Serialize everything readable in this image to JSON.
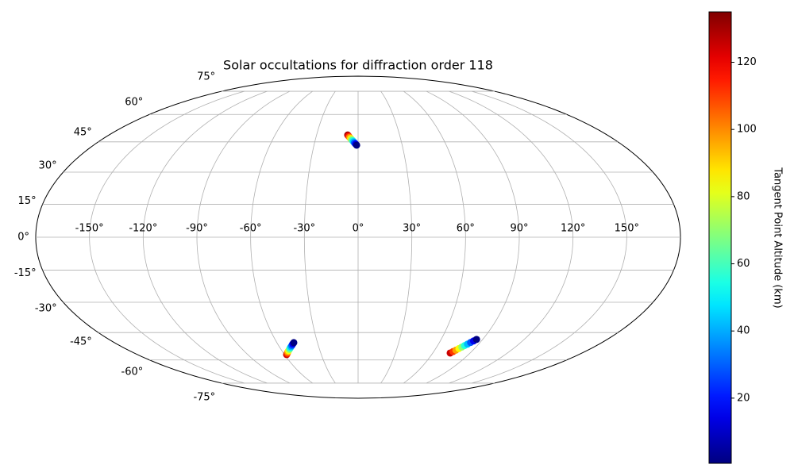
{
  "chart_data": {
    "type": "scatter",
    "projection": "mollweide",
    "title": "Solar occultations for diffraction order 118",
    "grid": true,
    "colormap": "jet",
    "xticks": [
      {
        "value": -150,
        "label": "-150°"
      },
      {
        "value": -120,
        "label": "-120°"
      },
      {
        "value": -90,
        "label": "-90°"
      },
      {
        "value": -60,
        "label": "-60°"
      },
      {
        "value": -30,
        "label": "-30°"
      },
      {
        "value": 0,
        "label": "0°"
      },
      {
        "value": 30,
        "label": "30°"
      },
      {
        "value": 60,
        "label": "60°"
      },
      {
        "value": 90,
        "label": "90°"
      },
      {
        "value": 120,
        "label": "120°"
      },
      {
        "value": 150,
        "label": "150°"
      }
    ],
    "yticks": [
      {
        "value": -75,
        "label": "-75°"
      },
      {
        "value": -60,
        "label": "-60°"
      },
      {
        "value": -45,
        "label": "-45°"
      },
      {
        "value": -30,
        "label": "-30°"
      },
      {
        "value": -15,
        "label": "-15°"
      },
      {
        "value": 0,
        "label": "0°"
      },
      {
        "value": 15,
        "label": "15°"
      },
      {
        "value": 30,
        "label": "30°"
      },
      {
        "value": 45,
        "label": "45°"
      },
      {
        "value": 60,
        "label": "60°"
      },
      {
        "value": 75,
        "label": "75°"
      }
    ],
    "xlim": [
      -180,
      180
    ],
    "ylim": [
      -90,
      90
    ],
    "colorbar": {
      "label": "Tangent Point Altitude (km)",
      "clim": [
        0.6,
        135
      ],
      "ticks": [
        20,
        40,
        60,
        80,
        100,
        120
      ]
    },
    "series": [
      {
        "x": [
          -7.5,
          -6.8,
          -6.1,
          -5.3,
          -4.6,
          -3.9,
          -3.2,
          -2.5,
          -1.7,
          -1.0
        ],
        "y": [
          48.6,
          48.0,
          47.4,
          46.8,
          46.2,
          45.7,
          45.1,
          44.5,
          43.9,
          43.3
        ],
        "c": [
          130,
          116,
          101,
          87,
          73,
          58,
          44,
          30,
          15,
          1
        ]
      },
      {
        "x": [
          -58.3,
          -57.1,
          -55.9,
          -54.7,
          -53.5,
          -52.3,
          -51.1,
          -49.9,
          -48.7,
          -47.5
        ],
        "y": [
          -56.9,
          -56.2,
          -55.4,
          -54.7,
          -54.0,
          -53.2,
          -52.5,
          -51.8,
          -51.0,
          -50.3
        ],
        "c": [
          125,
          111,
          97,
          84,
          70,
          56,
          42,
          29,
          15,
          1
        ]
      },
      {
        "x": [
          74.0,
          75.3,
          76.6,
          77.9,
          79.2,
          80.4,
          81.7,
          83.0,
          84.3,
          85.6
        ],
        "y": [
          -56.0,
          -55.2,
          -54.4,
          -53.5,
          -52.7,
          -51.9,
          -51.1,
          -50.2,
          -49.4,
          -48.6
        ],
        "c": [
          125,
          111,
          97,
          84,
          70,
          56,
          42,
          29,
          15,
          1
        ]
      }
    ]
  }
}
